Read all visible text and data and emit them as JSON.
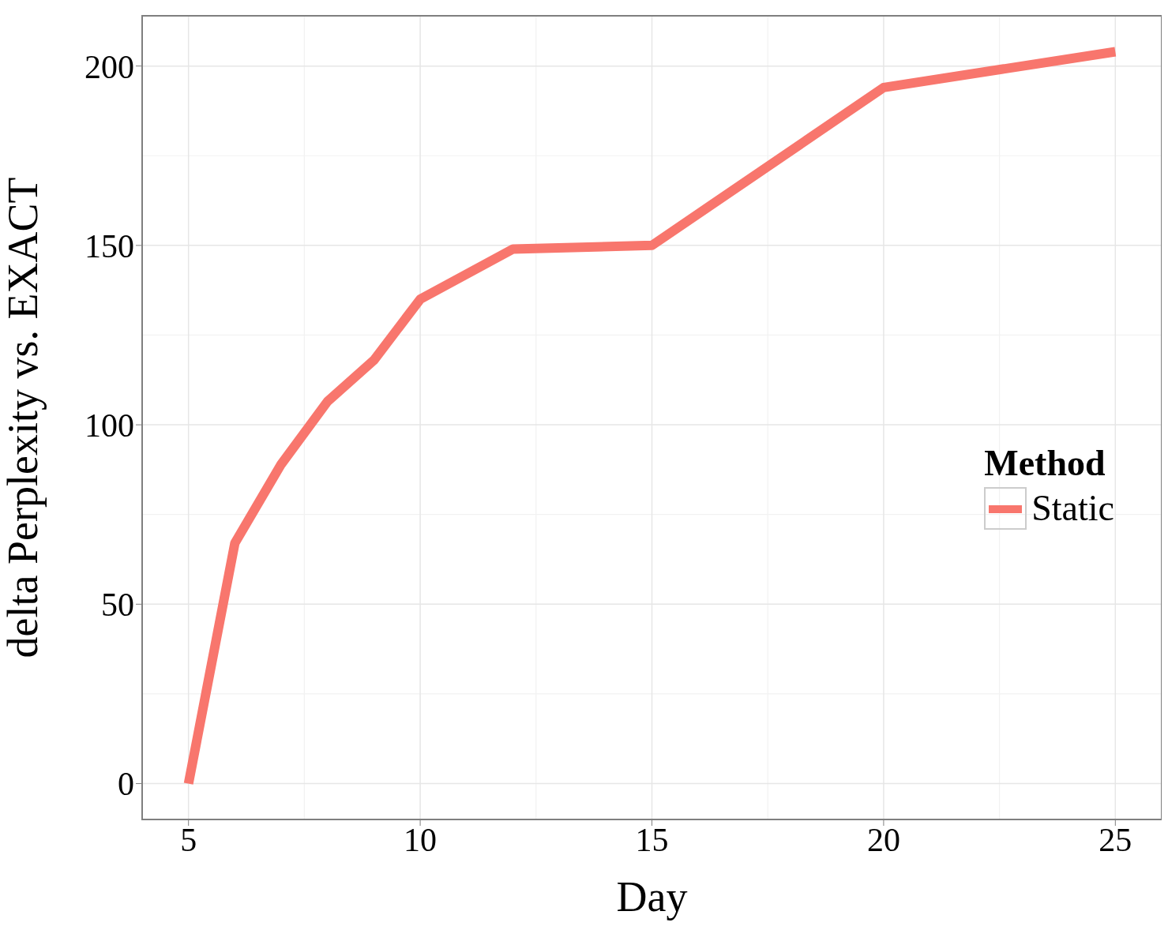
{
  "chart_data": {
    "type": "line",
    "xlabel": "Day",
    "ylabel": "delta Perplexity vs. EXACT",
    "legend_title": "Method",
    "x": [
      5,
      6,
      7,
      8,
      9,
      10,
      12,
      15,
      20,
      25
    ],
    "series": [
      {
        "name": "Static",
        "color": "#f8766d",
        "values": [
          0,
          67,
          89,
          106.5,
          118,
          135,
          149,
          150,
          194,
          204
        ]
      }
    ],
    "xlim": [
      4,
      26
    ],
    "xticks": [
      5,
      10,
      15,
      20,
      25
    ],
    "ylim": [
      -10,
      214
    ],
    "yticks": [
      0,
      50,
      100,
      150,
      200
    ],
    "grid": true,
    "legend": "right",
    "marker": "none",
    "line_style": "solid"
  }
}
